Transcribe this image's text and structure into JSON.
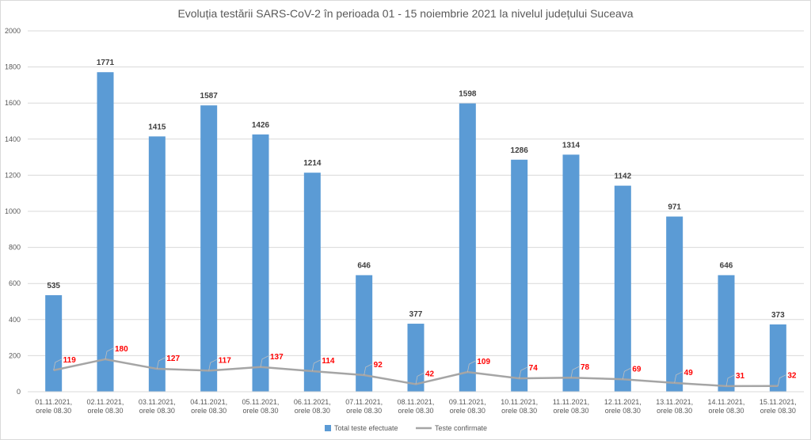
{
  "chart_data": {
    "type": "bar",
    "title": "Evoluția testării SARS-CoV-2 în perioada 01 - 15 noiembrie 2021 la nivelul județului Suceava",
    "categories": [
      [
        "01.11.2021,",
        "orele 08.30"
      ],
      [
        "02.11.2021,",
        "orele 08.30"
      ],
      [
        "03.11.2021,",
        "orele 08.30"
      ],
      [
        "04.11.2021,",
        "orele 08.30"
      ],
      [
        "05.11.2021,",
        "orele 08.30"
      ],
      [
        "06.11.2021,",
        "orele 08.30"
      ],
      [
        "07.11.2021,",
        "orele 08.30"
      ],
      [
        "08.11.2021,",
        "orele 08.30"
      ],
      [
        "09.11.2021,",
        "orele 08.30"
      ],
      [
        "10.11.2021,",
        "orele 08.30"
      ],
      [
        "11.11.2021,",
        "orele 08.30"
      ],
      [
        "12.11.2021,",
        "orele 08.30"
      ],
      [
        "13.11.2021,",
        "orele 08.30"
      ],
      [
        "14.11.2021,",
        "orele 08.30"
      ],
      [
        "15.11.2021,",
        "orele 08.30"
      ]
    ],
    "series": [
      {
        "name": "Total teste efectuate",
        "kind": "bar",
        "color": "#5b9bd5",
        "values": [
          535,
          1771,
          1415,
          1587,
          1426,
          1214,
          646,
          377,
          1598,
          1286,
          1314,
          1142,
          971,
          646,
          373
        ]
      },
      {
        "name": "Teste confirmate",
        "kind": "line",
        "color": "#a5a5a5",
        "label_color": "#ff0000",
        "values": [
          119,
          180,
          127,
          117,
          137,
          114,
          92,
          42,
          109,
          74,
          78,
          69,
          49,
          31,
          32
        ]
      }
    ],
    "ylim": [
      0,
      2000
    ],
    "yticks": [
      0,
      200,
      400,
      600,
      800,
      1000,
      1200,
      1400,
      1600,
      1800,
      2000
    ],
    "grid": true,
    "legend_position": "bottom"
  }
}
